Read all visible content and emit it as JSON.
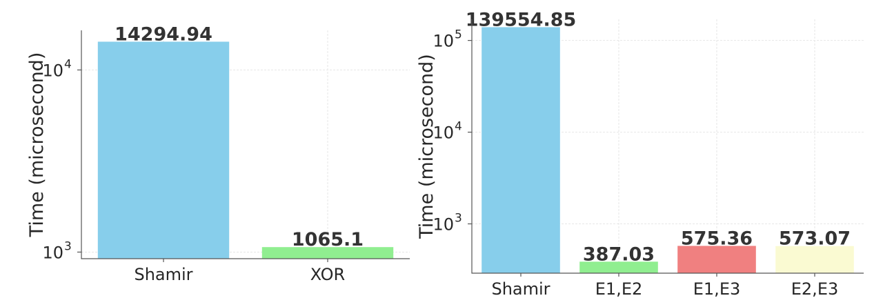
{
  "chart_data": [
    {
      "type": "bar",
      "yscale": "log",
      "ylabel": "Time (microsecond)",
      "categories": [
        "Shamir",
        "XOR"
      ],
      "values": [
        14294.94,
        1065.1
      ],
      "data_labels": [
        "14294.94",
        "1065.1"
      ],
      "colors": [
        "#87ceeb",
        "#90ee90"
      ],
      "ylim": [
        920,
        16500
      ],
      "yticks": [
        {
          "value": 1000,
          "base": "10",
          "exp": "3"
        },
        {
          "value": 10000,
          "base": "10",
          "exp": "4"
        }
      ],
      "grid": true
    },
    {
      "type": "bar",
      "yscale": "log",
      "ylabel": "Time (microsecond)",
      "categories": [
        "Shamir",
        "E1,E2",
        "E1,E3",
        "E2,E3"
      ],
      "values": [
        139554.85,
        387.03,
        575.36,
        573.07
      ],
      "data_labels": [
        "139554.85",
        "387.03",
        "575.36",
        "573.07"
      ],
      "colors": [
        "#87ceeb",
        "#90ee90",
        "#f08080",
        "#fafad2"
      ],
      "ylim": [
        290,
        170000
      ],
      "yticks": [
        {
          "value": 1000,
          "base": "10",
          "exp": "3"
        },
        {
          "value": 10000,
          "base": "10",
          "exp": "4"
        },
        {
          "value": 100000,
          "base": "10",
          "exp": "5"
        }
      ],
      "grid": true
    }
  ]
}
